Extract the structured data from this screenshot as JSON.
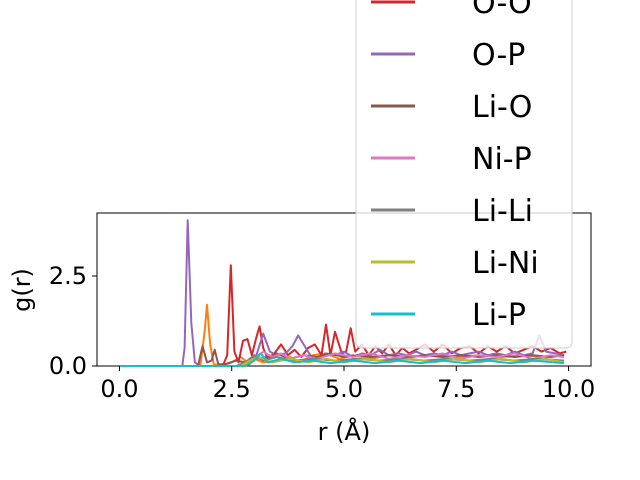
{
  "chart_data": {
    "type": "line",
    "xlabel": "r (Å)",
    "ylabel": "g(r)",
    "xlim": [
      -0.5,
      10.5
    ],
    "ylim": [
      0,
      4.25
    ],
    "xticks": [
      0.0,
      2.5,
      5.0,
      7.5,
      10.0
    ],
    "xtick_labels": [
      "0.0",
      "2.5",
      "5.0",
      "7.5",
      "10.0"
    ],
    "yticks": [
      0.0,
      2.5
    ],
    "ytick_labels": [
      "0.0",
      "2.5"
    ],
    "grid": false,
    "legend_position": "upper right",
    "series": [
      {
        "color": "#ff7f0e",
        "points": [
          [
            0,
            0
          ],
          [
            1.8,
            0
          ],
          [
            1.9,
            1.0
          ],
          [
            1.95,
            1.7
          ],
          [
            2.02,
            0.6
          ],
          [
            2.1,
            0.05
          ],
          [
            2.3,
            0.02
          ],
          [
            2.5,
            0.1
          ],
          [
            2.7,
            0.25
          ],
          [
            2.9,
            0.05
          ],
          [
            3.0,
            0.2
          ],
          [
            3.2,
            0.1
          ],
          [
            3.5,
            0.15
          ],
          [
            3.8,
            0.25
          ],
          [
            4.0,
            0.1
          ],
          [
            4.3,
            0.3
          ],
          [
            4.6,
            0.35
          ],
          [
            4.9,
            0.2
          ],
          [
            5.2,
            0.3
          ],
          [
            5.6,
            0.2
          ],
          [
            6.0,
            0.3
          ],
          [
            6.5,
            0.25
          ],
          [
            7.0,
            0.3
          ],
          [
            7.5,
            0.25
          ],
          [
            8.0,
            0.3
          ],
          [
            8.5,
            0.25
          ],
          [
            9.0,
            0.3
          ],
          [
            9.5,
            0.25
          ],
          [
            9.9,
            0.3
          ]
        ]
      },
      {
        "name": "O-O",
        "color": "#d62728",
        "points": [
          [
            0,
            0
          ],
          [
            2.3,
            0
          ],
          [
            2.4,
            0.3
          ],
          [
            2.48,
            2.8
          ],
          [
            2.56,
            0.4
          ],
          [
            2.65,
            0.1
          ],
          [
            2.75,
            0.7
          ],
          [
            2.85,
            0.75
          ],
          [
            2.95,
            0.3
          ],
          [
            3.05,
            0.8
          ],
          [
            3.12,
            1.1
          ],
          [
            3.2,
            0.5
          ],
          [
            3.3,
            0.2
          ],
          [
            3.45,
            0.35
          ],
          [
            3.6,
            0.6
          ],
          [
            3.75,
            0.3
          ],
          [
            3.9,
            0.45
          ],
          [
            4.05,
            0.25
          ],
          [
            4.2,
            0.5
          ],
          [
            4.35,
            0.6
          ],
          [
            4.5,
            0.3
          ],
          [
            4.6,
            1.15
          ],
          [
            4.7,
            0.3
          ],
          [
            4.8,
            0.95
          ],
          [
            4.95,
            0.35
          ],
          [
            5.05,
            0.4
          ],
          [
            5.15,
            1.05
          ],
          [
            5.25,
            0.4
          ],
          [
            5.4,
            0.6
          ],
          [
            5.55,
            0.3
          ],
          [
            5.7,
            0.55
          ],
          [
            5.85,
            0.35
          ],
          [
            6.0,
            0.6
          ],
          [
            6.15,
            0.3
          ],
          [
            6.3,
            0.5
          ],
          [
            6.45,
            0.35
          ],
          [
            6.6,
            0.45
          ],
          [
            6.8,
            0.6
          ],
          [
            7.0,
            0.4
          ],
          [
            7.2,
            0.6
          ],
          [
            7.4,
            0.35
          ],
          [
            7.6,
            0.5
          ],
          [
            7.8,
            0.55
          ],
          [
            8.0,
            0.35
          ],
          [
            8.2,
            0.55
          ],
          [
            8.4,
            0.4
          ],
          [
            8.6,
            0.55
          ],
          [
            8.8,
            0.35
          ],
          [
            9.0,
            0.45
          ],
          [
            9.2,
            0.55
          ],
          [
            9.4,
            0.4
          ],
          [
            9.6,
            0.5
          ],
          [
            9.8,
            0.35
          ],
          [
            9.95,
            0.4
          ]
        ]
      },
      {
        "name": "O-P",
        "color": "#9467bd",
        "points": [
          [
            0,
            0
          ],
          [
            1.4,
            0
          ],
          [
            1.45,
            0.5
          ],
          [
            1.52,
            4.05
          ],
          [
            1.6,
            1.2
          ],
          [
            1.68,
            0.1
          ],
          [
            1.8,
            0
          ],
          [
            2.8,
            0
          ],
          [
            3.05,
            0.3
          ],
          [
            3.2,
            0.9
          ],
          [
            3.35,
            0.4
          ],
          [
            3.5,
            0.3
          ],
          [
            3.7,
            0.35
          ],
          [
            3.85,
            0.55
          ],
          [
            3.98,
            0.85
          ],
          [
            4.1,
            0.6
          ],
          [
            4.25,
            0.3
          ],
          [
            4.4,
            0.2
          ],
          [
            4.6,
            0.35
          ],
          [
            4.8,
            0.3
          ],
          [
            5.0,
            0.4
          ],
          [
            5.2,
            0.25
          ],
          [
            5.4,
            0.35
          ],
          [
            5.6,
            0.3
          ],
          [
            5.8,
            0.45
          ],
          [
            6.0,
            0.3
          ],
          [
            6.2,
            0.35
          ],
          [
            6.4,
            0.3
          ],
          [
            6.6,
            0.4
          ],
          [
            6.8,
            0.3
          ],
          [
            7.0,
            0.35
          ],
          [
            7.2,
            0.3
          ],
          [
            7.4,
            0.4
          ],
          [
            7.6,
            0.3
          ],
          [
            7.8,
            0.35
          ],
          [
            8.0,
            0.4
          ],
          [
            8.2,
            0.3
          ],
          [
            8.4,
            0.35
          ],
          [
            8.6,
            0.3
          ],
          [
            8.8,
            0.4
          ],
          [
            9.0,
            0.3
          ],
          [
            9.2,
            0.35
          ],
          [
            9.35,
            0.85
          ],
          [
            9.5,
            0.4
          ],
          [
            9.7,
            0.35
          ],
          [
            9.9,
            0.3
          ]
        ]
      },
      {
        "name": "Li-O",
        "color": "#8c564b",
        "points": [
          [
            0,
            0
          ],
          [
            1.75,
            0
          ],
          [
            1.85,
            0.55
          ],
          [
            1.95,
            0.1
          ],
          [
            2.05,
            0.15
          ],
          [
            2.12,
            0.45
          ],
          [
            2.2,
            0.05
          ],
          [
            2.35,
            0.05
          ],
          [
            2.6,
            0.15
          ],
          [
            2.8,
            0.1
          ],
          [
            3.0,
            0.2
          ],
          [
            3.3,
            0.25
          ],
          [
            3.5,
            0.35
          ],
          [
            3.8,
            0.2
          ],
          [
            4.1,
            0.3
          ],
          [
            4.4,
            0.25
          ],
          [
            4.7,
            0.35
          ],
          [
            5.0,
            0.25
          ],
          [
            5.3,
            0.3
          ],
          [
            5.6,
            0.25
          ],
          [
            6.0,
            0.3
          ],
          [
            6.4,
            0.25
          ],
          [
            6.8,
            0.3
          ],
          [
            7.2,
            0.25
          ],
          [
            7.6,
            0.3
          ],
          [
            8.0,
            0.25
          ],
          [
            8.4,
            0.3
          ],
          [
            8.8,
            0.25
          ],
          [
            9.2,
            0.3
          ],
          [
            9.6,
            0.25
          ],
          [
            9.9,
            0.3
          ]
        ]
      },
      {
        "name": "Ni-P",
        "color": "#e377c2",
        "points": [
          [
            0,
            0
          ],
          [
            2.8,
            0
          ],
          [
            3.0,
            0.2
          ],
          [
            3.2,
            0.4
          ],
          [
            3.4,
            0.25
          ],
          [
            3.6,
            0.35
          ],
          [
            3.8,
            0.2
          ],
          [
            4.1,
            0.3
          ],
          [
            4.4,
            0.2
          ],
          [
            4.8,
            0.35
          ],
          [
            5.2,
            0.25
          ],
          [
            5.6,
            0.35
          ],
          [
            6.0,
            0.2
          ],
          [
            6.4,
            0.3
          ],
          [
            6.8,
            0.25
          ],
          [
            7.2,
            0.35
          ],
          [
            7.6,
            0.2
          ],
          [
            8.0,
            0.3
          ],
          [
            8.4,
            0.25
          ],
          [
            8.8,
            0.35
          ],
          [
            9.2,
            0.2
          ],
          [
            9.6,
            0.3
          ],
          [
            9.9,
            0.25
          ]
        ]
      },
      {
        "name": "Li-Li",
        "color": "#7f7f7f",
        "points": [
          [
            0,
            0
          ],
          [
            2.6,
            0
          ],
          [
            2.8,
            0.1
          ],
          [
            3.0,
            0.3
          ],
          [
            3.2,
            0.15
          ],
          [
            3.5,
            0.25
          ],
          [
            3.9,
            0.15
          ],
          [
            4.3,
            0.2
          ],
          [
            4.8,
            0.15
          ],
          [
            5.3,
            0.2
          ],
          [
            5.8,
            0.15
          ],
          [
            6.3,
            0.2
          ],
          [
            6.8,
            0.15
          ],
          [
            7.3,
            0.2
          ],
          [
            7.8,
            0.15
          ],
          [
            8.3,
            0.2
          ],
          [
            8.8,
            0.15
          ],
          [
            9.3,
            0.2
          ],
          [
            9.9,
            0.15
          ]
        ]
      },
      {
        "name": "Li-Ni",
        "color": "#bcbd22",
        "points": [
          [
            0,
            0
          ],
          [
            2.7,
            0
          ],
          [
            2.9,
            0.15
          ],
          [
            3.1,
            0.25
          ],
          [
            3.4,
            0.1
          ],
          [
            3.8,
            0.2
          ],
          [
            4.2,
            0.1
          ],
          [
            4.6,
            0.2
          ],
          [
            5.0,
            0.1
          ],
          [
            5.5,
            0.2
          ],
          [
            6.0,
            0.1
          ],
          [
            6.5,
            0.2
          ],
          [
            7.0,
            0.1
          ],
          [
            7.5,
            0.2
          ],
          [
            8.0,
            0.1
          ],
          [
            8.5,
            0.2
          ],
          [
            9.0,
            0.1
          ],
          [
            9.5,
            0.2
          ],
          [
            9.9,
            0.1
          ]
        ]
      },
      {
        "name": "Li-P",
        "color": "#17becf",
        "points": [
          [
            0,
            0
          ],
          [
            2.8,
            0
          ],
          [
            3.0,
            0.15
          ],
          [
            3.15,
            0.35
          ],
          [
            3.3,
            0.1
          ],
          [
            3.6,
            0.2
          ],
          [
            3.9,
            0.1
          ],
          [
            4.3,
            0.15
          ],
          [
            4.7,
            0.08
          ],
          [
            5.2,
            0.15
          ],
          [
            5.7,
            0.08
          ],
          [
            6.2,
            0.15
          ],
          [
            6.7,
            0.08
          ],
          [
            7.2,
            0.15
          ],
          [
            7.7,
            0.08
          ],
          [
            8.2,
            0.15
          ],
          [
            8.7,
            0.08
          ],
          [
            9.2,
            0.15
          ],
          [
            9.9,
            0.08
          ]
        ]
      }
    ],
    "legend": [
      {
        "label": "O-O",
        "color": "#d62728"
      },
      {
        "label": "O-P",
        "color": "#9467bd"
      },
      {
        "label": "Li-O",
        "color": "#8c564b"
      },
      {
        "label": "Ni-P",
        "color": "#e377c2"
      },
      {
        "label": "Li-Li",
        "color": "#7f7f7f"
      },
      {
        "label": "Li-Ni",
        "color": "#bcbd22"
      },
      {
        "label": "Li-P",
        "color": "#17becf"
      }
    ]
  }
}
